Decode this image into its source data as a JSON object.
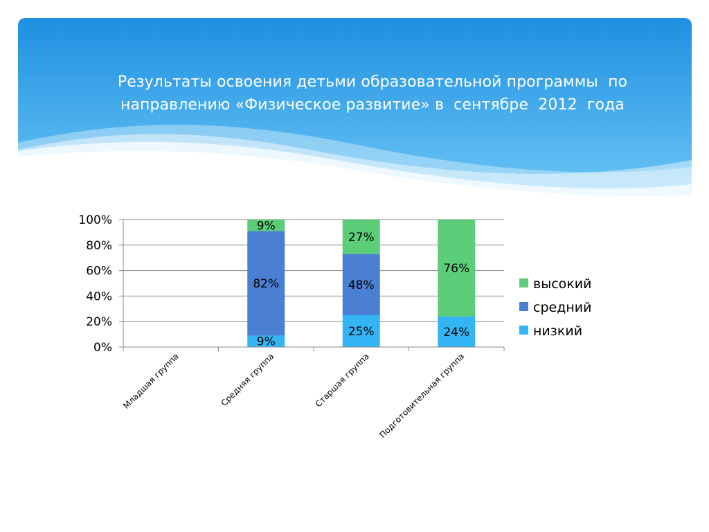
{
  "slide": {
    "title_lines": [
      "Результаты освоения детьми образовательной программы  по",
      "направлению «Физическое развитие» в  сентябре  2012  года"
    ],
    "banner_colors": {
      "top": "#1e8fe0",
      "bottom": "#6cc6f6",
      "wave": "#ffffff"
    }
  },
  "chart_data": {
    "type": "bar",
    "stacked": true,
    "percent": true,
    "title": "",
    "xlabel": "",
    "ylabel": "",
    "ylim": [
      0,
      100
    ],
    "yticks": [
      "0%",
      "20%",
      "40%",
      "60%",
      "80%",
      "100%"
    ],
    "grid": true,
    "legend_position": "right",
    "categories": [
      "Младшая группа",
      "Средняя  группа",
      "Старшая группа",
      "Подготовительная группа"
    ],
    "series": [
      {
        "name": "низкий",
        "color": "#33b5f5",
        "values": [
          0,
          9,
          25,
          24
        ],
        "labels": [
          "",
          "9%",
          "25%",
          "24%"
        ]
      },
      {
        "name": "средний",
        "color": "#4a7fd4",
        "values": [
          0,
          82,
          48,
          0
        ],
        "labels": [
          "",
          "82%",
          "48%",
          ""
        ]
      },
      {
        "name": "высокий",
        "color": "#5ccd78",
        "values": [
          0,
          9,
          27,
          76
        ],
        "labels": [
          "",
          "9%",
          "27%",
          "76%"
        ]
      }
    ],
    "legend_order": [
      "высокий",
      "средний",
      "низкий"
    ]
  }
}
